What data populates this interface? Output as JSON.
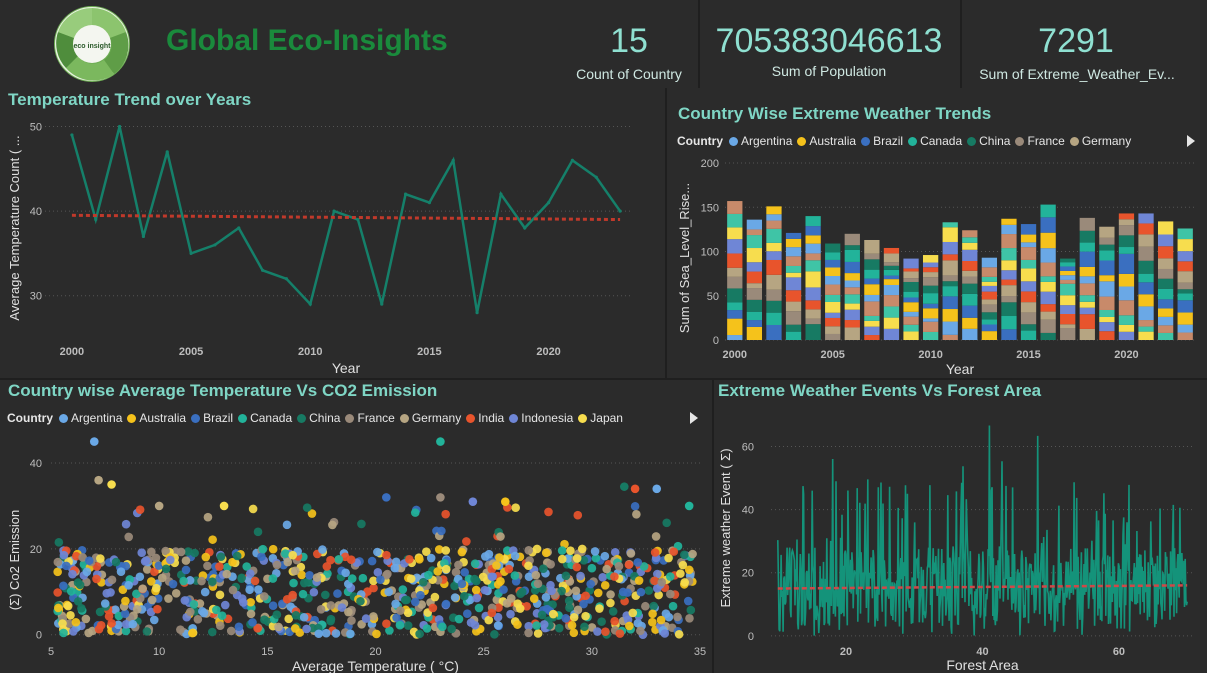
{
  "header": {
    "title": "Global Eco-Insights",
    "logo_text": "eco insight",
    "logo_ring_words": [
      "MONITOR",
      "TRACK",
      "ANALYZE",
      "IMPROVE",
      "EDUCATE"
    ]
  },
  "kpis": [
    {
      "value": "15",
      "label": "Count of Country"
    },
    {
      "value": "705383046613",
      "label": "Sum of Population"
    },
    {
      "value": "7291",
      "label": "Sum of Extreme_Weather_Ev..."
    }
  ],
  "colors": {
    "accent": "#7fd6c5",
    "title_green": "#1a8a3c",
    "line": "#15806a",
    "trend": "#c0392b"
  },
  "country_palette": {
    "Argentina": "#6aa8e6",
    "Australia": "#f5c21b",
    "Brazil": "#3a6fc0",
    "Canada": "#22b39a",
    "China": "#177a63",
    "France": "#9a8a7a",
    "Germany": "#b6a582",
    "India": "#e8542c",
    "Indonesia": "#6f86d6",
    "Japan": "#f7dd4e"
  },
  "chart_data": [
    {
      "id": "temp_trend",
      "type": "line",
      "title": "Temperature Trend over Years",
      "xlabel": "Year",
      "ylabel": "Average Temperature Count ( ...",
      "x": [
        2000,
        2001,
        2002,
        2003,
        2004,
        2005,
        2006,
        2007,
        2008,
        2009,
        2010,
        2011,
        2012,
        2013,
        2014,
        2015,
        2016,
        2017,
        2018,
        2019,
        2020,
        2021,
        2022,
        2023
      ],
      "values": [
        49,
        39,
        50,
        37,
        47,
        35,
        36,
        38,
        33,
        32,
        29,
        40,
        39,
        29,
        42,
        41,
        46,
        28,
        42,
        38,
        41,
        46,
        44,
        40
      ],
      "trendline": [
        39.5,
        39.0
      ],
      "xlim": [
        1999.5,
        2023.5
      ],
      "ylim": [
        25,
        51
      ],
      "xticks": [
        2000,
        2005,
        2010,
        2015,
        2020
      ],
      "yticks": [
        30,
        40,
        50
      ]
    },
    {
      "id": "extreme_weather_trends",
      "type": "bar",
      "stacked": true,
      "title": "Country Wise Extreme Weather Trends",
      "xlabel": "Year",
      "ylabel": "Sum of Sea_Level_Rise...",
      "legend_title": "Country",
      "legend": [
        "Argentina",
        "Australia",
        "Brazil",
        "Canada",
        "China",
        "France",
        "Germany"
      ],
      "categories": [
        2000,
        2001,
        2002,
        2003,
        2004,
        2005,
        2006,
        2007,
        2008,
        2009,
        2010,
        2011,
        2012,
        2013,
        2014,
        2015,
        2016,
        2017,
        2018,
        2019,
        2020,
        2021,
        2022,
        2023
      ],
      "totals": [
        157,
        136,
        151,
        121,
        140,
        109,
        120,
        113,
        104,
        92,
        96,
        133,
        124,
        93,
        137,
        131,
        153,
        92,
        138,
        128,
        143,
        143,
        134,
        126
      ],
      "segment_colors": [
        "#6aa8e6",
        "#f5c21b",
        "#3a6fc0",
        "#22b39a",
        "#177a63",
        "#9a8a7a",
        "#b6a582",
        "#e8542c",
        "#6f86d6",
        "#f7dd4e",
        "#3fc4a6",
        "#c88a6a"
      ],
      "ylim": [
        0,
        200
      ],
      "yticks": [
        0,
        50,
        100,
        150,
        200
      ],
      "xticks": [
        2000,
        2005,
        2010,
        2015,
        2020
      ]
    },
    {
      "id": "temp_vs_co2",
      "type": "scatter",
      "title": "Country wise Average Temperature Vs CO2 Emission",
      "xlabel": "Average Temperature ( °C)",
      "ylabel": "(Σ) Co2 Emission",
      "legend_title": "Country",
      "legend": [
        "Argentina",
        "Australia",
        "Brazil",
        "Canada",
        "China",
        "France",
        "Germany",
        "India",
        "Indonesia",
        "Japan"
      ],
      "xlim": [
        5,
        35
      ],
      "ylim": [
        -1,
        47
      ],
      "xticks": [
        5,
        10,
        15,
        20,
        25,
        30,
        35
      ],
      "yticks": [
        0,
        20,
        40
      ],
      "n_points": 900,
      "outliers": [
        [
          7,
          45
        ],
        [
          23,
          45
        ],
        [
          7.2,
          36
        ],
        [
          7.8,
          35
        ],
        [
          20.5,
          32
        ],
        [
          23,
          32
        ],
        [
          24.5,
          31
        ],
        [
          26,
          31
        ],
        [
          31.5,
          34.5
        ],
        [
          32,
          34
        ],
        [
          33,
          34
        ],
        [
          34.5,
          30
        ],
        [
          10,
          30
        ],
        [
          13,
          30
        ]
      ]
    },
    {
      "id": "weather_vs_forest",
      "type": "line",
      "title": "Extreme Weather Events Vs Forest Area",
      "xlabel": "Forest Area",
      "ylabel": "Extreme weather Event ( Σ)",
      "xlim": [
        9,
        71
      ],
      "ylim": [
        -1,
        70
      ],
      "xticks": [
        20,
        40,
        60
      ],
      "yticks": [
        0,
        20,
        40,
        60
      ],
      "trendline": [
        15,
        16
      ],
      "n_points": 620
    }
  ]
}
